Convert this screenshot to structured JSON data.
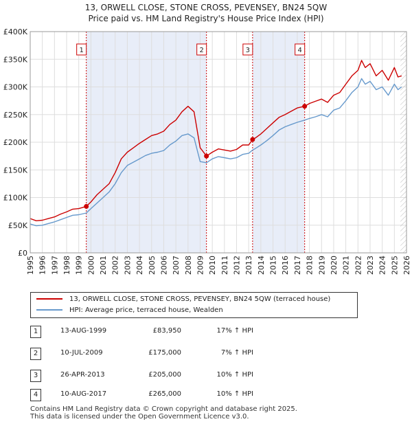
{
  "chart_data": {
    "type": "line",
    "title": "13, ORWELL CLOSE, STONE CROSS, PEVENSEY, BN24 5QW",
    "subtitle": "Price paid vs. HM Land Registry's House Price Index (HPI)",
    "xlim": [
      1995,
      2026
    ],
    "ylim": [
      0,
      400000
    ],
    "y_ticks": [
      {
        "value": 0,
        "label": "£0"
      },
      {
        "value": 50000,
        "label": "£50K"
      },
      {
        "value": 100000,
        "label": "£100K"
      },
      {
        "value": 150000,
        "label": "£150K"
      },
      {
        "value": 200000,
        "label": "£200K"
      },
      {
        "value": 250000,
        "label": "£250K"
      },
      {
        "value": 300000,
        "label": "£300K"
      },
      {
        "value": 350000,
        "label": "£350K"
      },
      {
        "value": 400000,
        "label": "£400K"
      }
    ],
    "x_ticks": [
      "1995",
      "1996",
      "1997",
      "1998",
      "1999",
      "2000",
      "2001",
      "2002",
      "2003",
      "2004",
      "2005",
      "2006",
      "2007",
      "2008",
      "2009",
      "2010",
      "2011",
      "2012",
      "2013",
      "2014",
      "2015",
      "2016",
      "2017",
      "2018",
      "2019",
      "2020",
      "2021",
      "2022",
      "2023",
      "2024",
      "2025",
      "2026"
    ],
    "grid": true,
    "series": [
      {
        "name": "13, ORWELL CLOSE, STONE CROSS, PEVENSEY, BN24 5QW (terraced house)",
        "color": "#cc0000",
        "x": [
          1995.0,
          1995.5,
          1996.0,
          1996.5,
          1997.0,
          1997.5,
          1998.0,
          1998.5,
          1999.0,
          1999.62,
          2000.0,
          2000.5,
          2001.0,
          2001.5,
          2002.0,
          2002.5,
          2003.0,
          2003.5,
          2004.0,
          2004.5,
          2005.0,
          2005.5,
          2006.0,
          2006.5,
          2007.0,
          2007.5,
          2008.0,
          2008.5,
          2009.0,
          2009.52,
          2010.0,
          2010.5,
          2011.0,
          2011.5,
          2012.0,
          2012.5,
          2013.0,
          2013.32,
          2013.5,
          2014.0,
          2014.5,
          2015.0,
          2015.5,
          2016.0,
          2016.5,
          2017.0,
          2017.61,
          2018.0,
          2018.5,
          2019.0,
          2019.5,
          2020.0,
          2020.5,
          2021.0,
          2021.5,
          2022.0,
          2022.3,
          2022.6,
          2023.0,
          2023.5,
          2024.0,
          2024.5,
          2025.0,
          2025.3,
          2025.6
        ],
        "values": [
          62000,
          58000,
          59000,
          62000,
          65000,
          70000,
          74000,
          79000,
          80000,
          83950,
          92000,
          105000,
          115000,
          125000,
          145000,
          170000,
          182000,
          190000,
          198000,
          205000,
          212000,
          215000,
          220000,
          232000,
          240000,
          255000,
          265000,
          255000,
          190000,
          175000,
          182000,
          188000,
          186000,
          184000,
          187000,
          195000,
          195000,
          205000,
          207000,
          215000,
          225000,
          235000,
          245000,
          250000,
          256000,
          262000,
          265000,
          270000,
          274000,
          278000,
          272000,
          285000,
          290000,
          305000,
          320000,
          330000,
          348000,
          335000,
          342000,
          320000,
          330000,
          312000,
          335000,
          318000,
          320000
        ]
      },
      {
        "name": "HPI: Average price, terraced house, Wealden",
        "color": "#6699cc",
        "x": [
          1995.0,
          1995.5,
          1996.0,
          1996.5,
          1997.0,
          1997.5,
          1998.0,
          1998.5,
          1999.0,
          1999.62,
          2000.0,
          2000.5,
          2001.0,
          2001.5,
          2002.0,
          2002.5,
          2003.0,
          2003.5,
          2004.0,
          2004.5,
          2005.0,
          2005.5,
          2006.0,
          2006.5,
          2007.0,
          2007.5,
          2008.0,
          2008.5,
          2009.0,
          2009.52,
          2010.0,
          2010.5,
          2011.0,
          2011.5,
          2012.0,
          2012.5,
          2013.0,
          2013.32,
          2013.5,
          2014.0,
          2014.5,
          2015.0,
          2015.5,
          2016.0,
          2016.5,
          2017.0,
          2017.61,
          2018.0,
          2018.5,
          2019.0,
          2019.5,
          2020.0,
          2020.5,
          2021.0,
          2021.5,
          2022.0,
          2022.3,
          2022.6,
          2023.0,
          2023.5,
          2024.0,
          2024.5,
          2025.0,
          2025.3,
          2025.6
        ],
        "values": [
          52000,
          49000,
          50000,
          53000,
          56000,
          60000,
          64000,
          68000,
          69000,
          72000,
          80000,
          90000,
          100000,
          110000,
          125000,
          145000,
          158000,
          164000,
          170000,
          176000,
          180000,
          182000,
          185000,
          195000,
          202000,
          212000,
          215000,
          208000,
          165000,
          163000,
          170000,
          174000,
          172000,
          170000,
          172000,
          178000,
          180000,
          186000,
          188000,
          195000,
          203000,
          212000,
          222000,
          228000,
          232000,
          236000,
          240000,
          243000,
          246000,
          250000,
          246000,
          258000,
          262000,
          275000,
          290000,
          300000,
          315000,
          305000,
          310000,
          295000,
          300000,
          285000,
          305000,
          295000,
          300000
        ]
      }
    ],
    "transactions": [
      {
        "label": "1",
        "date": "13-AUG-1999",
        "x": 1999.62,
        "price": "£83,950",
        "value": 83950,
        "hpi": "17% ↑ HPI"
      },
      {
        "label": "2",
        "date": "10-JUL-2009",
        "x": 2009.52,
        "price": "£175,000",
        "value": 175000,
        "hpi": "7% ↑ HPI"
      },
      {
        "label": "3",
        "date": "26-APR-2013",
        "x": 2013.32,
        "price": "£205,000",
        "value": 205000,
        "hpi": "10% ↑ HPI"
      },
      {
        "label": "4",
        "date": "10-AUG-2017",
        "x": 2017.61,
        "price": "£265,000",
        "value": 265000,
        "hpi": "10% ↑ HPI"
      }
    ],
    "shaded_periods": [
      [
        1999.62,
        2009.52
      ],
      [
        2013.32,
        2017.61
      ]
    ],
    "future_hatch_from": 2025.5
  },
  "colors": {
    "property": "#cc0000",
    "hpi": "#6699cc",
    "shade": "#e8edf8",
    "grid": "#dddddd"
  },
  "footer": {
    "line1": "Contains HM Land Registry data © Crown copyright and database right 2025.",
    "line2": "This data is licensed under the Open Government Licence v3.0."
  }
}
